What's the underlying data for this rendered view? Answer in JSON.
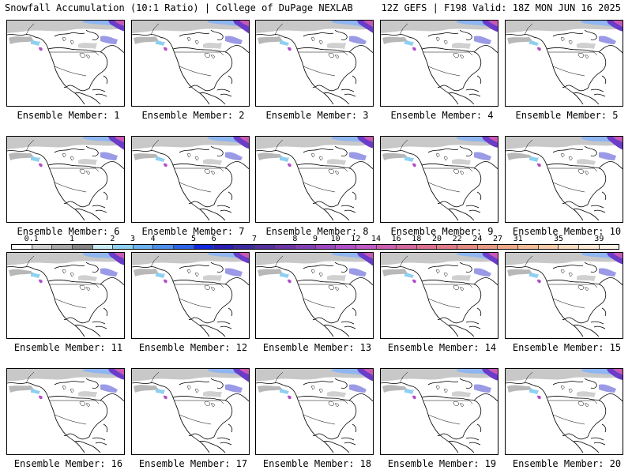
{
  "header": {
    "left": "Snowfall Accumulation (10:1 Ratio) | College of DuPage NEXLAB",
    "right": "12Z GEFS | F198 Valid: 18Z MON JUN 16 2025"
  },
  "members": [
    "Ensemble Member: 1",
    "Ensemble Member: 2",
    "Ensemble Member: 3",
    "Ensemble Member: 4",
    "Ensemble Member: 5",
    "Ensemble Member: 6",
    "Ensemble Member: 7",
    "Ensemble Member: 8",
    "Ensemble Member: 9",
    "Ensemble Member: 10",
    "Ensemble Member: 11",
    "Ensemble Member: 12",
    "Ensemble Member: 13",
    "Ensemble Member: 14",
    "Ensemble Member: 15",
    "Ensemble Member: 16",
    "Ensemble Member: 17",
    "Ensemble Member: 18",
    "Ensemble Member: 19",
    "Ensemble Member: 20"
  ],
  "colorbar": {
    "labels": [
      "0.1",
      "1",
      "2",
      "3",
      "4",
      "5",
      "6",
      "7",
      "8",
      "9",
      "10",
      "12",
      "14",
      "16",
      "18",
      "20",
      "22",
      "24",
      "27",
      "31",
      "35",
      "39"
    ],
    "colors": [
      "#ffffff",
      "#d0d0d0",
      "#a8a8a8",
      "#858585",
      "#c8ecf6",
      "#8fd0f0",
      "#6cb2ee",
      "#4f90ec",
      "#2f63e6",
      "#1428e0",
      "#2a1fb0",
      "#3d2aa0",
      "#552f9e",
      "#6c36a8",
      "#8340b4",
      "#9a48c0",
      "#b050c8",
      "#c05ac4",
      "#cc60b0",
      "#d4689e",
      "#dc7090",
      "#e07c88",
      "#e48a80",
      "#e89a84",
      "#eeaa88",
      "#f0bc96",
      "#f4ccaa",
      "#f8dcc0",
      "#fbe8d4",
      "#fdf4e8"
    ]
  }
}
